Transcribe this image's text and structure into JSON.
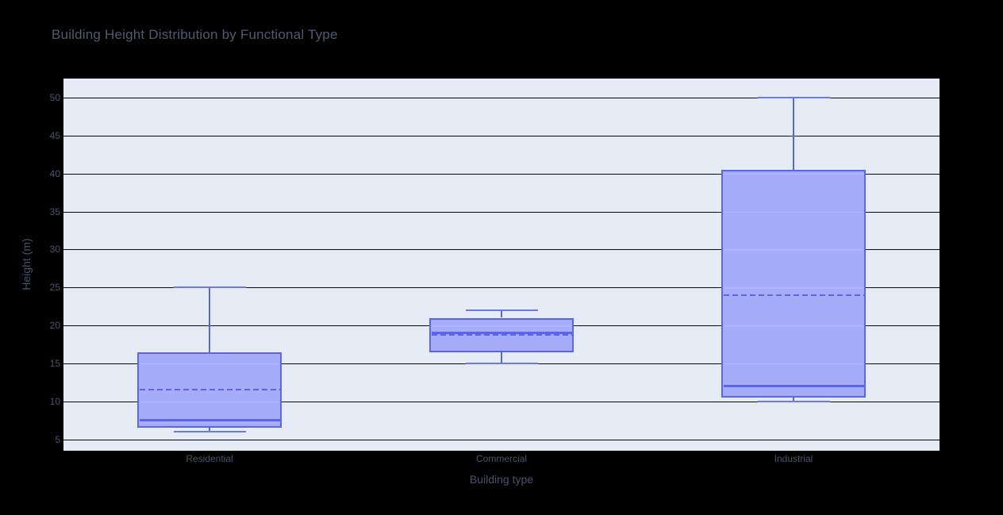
{
  "title": {
    "text": "Building Height Distribution by Functional Type"
  },
  "axes": {
    "x_title": "Building type",
    "y_title": "Height (m)"
  },
  "colors": {
    "page_bg": "#000000",
    "plot_bg": "#e5ecf6",
    "gridline": "#0b0b0b",
    "box_line": "#5b65e9",
    "cap_line": "#6d77ee",
    "box_fill": "#a6acf9",
    "box_grid_stripe": "#b3b7fc",
    "title_text": "#4b5c73",
    "tick_text": "#44556c"
  },
  "chart_data": {
    "type": "box",
    "title": "Building Height Distribution by Functional Type",
    "xlabel": "Building type",
    "ylabel": "Height (m)",
    "categories": [
      "Residential",
      "Commercial",
      "Industrial"
    ],
    "ylim": [
      3.5,
      52.5
    ],
    "yticks": [
      5,
      10,
      15,
      20,
      25,
      30,
      35,
      40,
      45,
      50
    ],
    "grid": true,
    "legend": false,
    "orientation": "vertical",
    "mean_line": "dashed",
    "series": [
      {
        "name": "Residential",
        "min": 6,
        "q1": 6.5,
        "median": 7.5,
        "mean": 11.5,
        "q3": 16.5,
        "max": 25
      },
      {
        "name": "Commercial",
        "min": 15,
        "q1": 16.5,
        "median": 19,
        "mean": 18.75,
        "q3": 21,
        "max": 22
      },
      {
        "name": "Industrial",
        "min": 10,
        "q1": 10.5,
        "median": 12,
        "mean": 24,
        "q3": 40.5,
        "max": 50
      }
    ]
  }
}
